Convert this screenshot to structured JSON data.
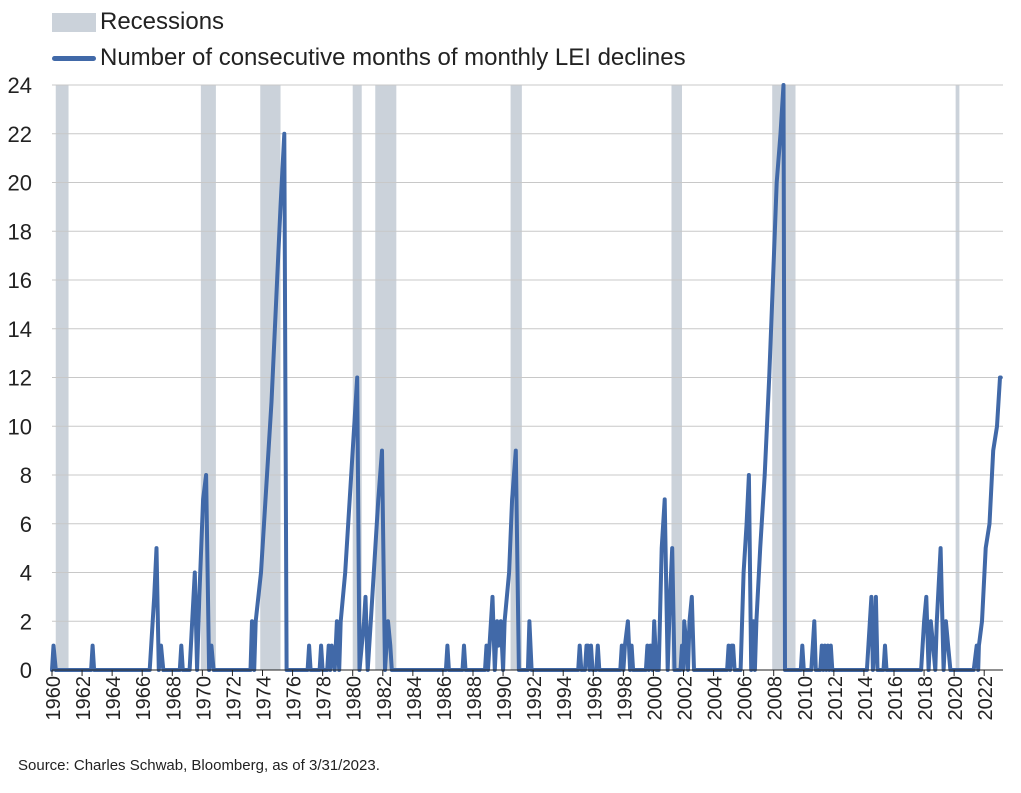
{
  "chart_data": {
    "type": "line",
    "title": "",
    "xlabel": "",
    "ylabel": "",
    "ylim": [
      0,
      24
    ],
    "xlim": [
      1960,
      2023.25
    ],
    "yticks": [
      0,
      2,
      4,
      6,
      8,
      10,
      12,
      14,
      16,
      18,
      20,
      22,
      24
    ],
    "xticks": [
      "1960",
      "1962",
      "1964",
      "1966",
      "1968",
      "1970",
      "1972",
      "1974",
      "1976",
      "1978",
      "1980",
      "1982",
      "1984",
      "1986",
      "1988",
      "1990",
      "1992",
      "1994",
      "1996",
      "1998",
      "2000",
      "2002",
      "2004",
      "2006",
      "2008",
      "2010",
      "2012",
      "2014",
      "2016",
      "2018",
      "2020",
      "2022"
    ],
    "grid": true,
    "legend": {
      "position": "top-left",
      "recessions_label": "Recessions",
      "series_label": "Number of consecutive months of monthly LEI declines"
    },
    "colors": {
      "series": "#4169a8",
      "recession": "#cbd2da",
      "grid": "#c8c8c8"
    },
    "recessions": [
      [
        1960.25,
        1961.1
      ],
      [
        1969.9,
        1970.9
      ],
      [
        1973.85,
        1975.2
      ],
      [
        1980.0,
        1980.6
      ],
      [
        1981.5,
        1982.9
      ],
      [
        1990.5,
        1991.25
      ],
      [
        2001.2,
        2001.9
      ],
      [
        2007.9,
        2009.45
      ],
      [
        2020.1,
        2020.35
      ]
    ],
    "series": [
      {
        "name": "Number of consecutive months of monthly LEI declines",
        "points": [
          [
            1960.0,
            0
          ],
          [
            1960.1,
            1
          ],
          [
            1960.25,
            0
          ],
          [
            1962.6,
            0
          ],
          [
            1962.7,
            1
          ],
          [
            1962.8,
            0
          ],
          [
            1966.5,
            0
          ],
          [
            1966.8,
            3
          ],
          [
            1966.95,
            5
          ],
          [
            1967.1,
            0
          ],
          [
            1967.25,
            1
          ],
          [
            1967.4,
            0
          ],
          [
            1968.5,
            0
          ],
          [
            1968.6,
            1
          ],
          [
            1968.7,
            0
          ],
          [
            1969.15,
            0
          ],
          [
            1969.5,
            4
          ],
          [
            1969.65,
            0
          ],
          [
            1969.8,
            3
          ],
          [
            1970.05,
            7
          ],
          [
            1970.25,
            8
          ],
          [
            1970.45,
            0
          ],
          [
            1970.6,
            1
          ],
          [
            1970.75,
            0
          ],
          [
            1973.2,
            0
          ],
          [
            1973.3,
            2
          ],
          [
            1973.45,
            0
          ],
          [
            1973.55,
            2
          ],
          [
            1973.9,
            4
          ],
          [
            1974.2,
            7
          ],
          [
            1974.6,
            11
          ],
          [
            1974.9,
            15
          ],
          [
            1975.2,
            19
          ],
          [
            1975.45,
            22
          ],
          [
            1975.6,
            0
          ],
          [
            1977.0,
            0
          ],
          [
            1977.1,
            1
          ],
          [
            1977.2,
            0
          ],
          [
            1977.8,
            0
          ],
          [
            1977.9,
            1
          ],
          [
            1978.0,
            0
          ],
          [
            1978.3,
            0
          ],
          [
            1978.4,
            1
          ],
          [
            1978.5,
            0
          ],
          [
            1978.6,
            1
          ],
          [
            1978.8,
            0
          ],
          [
            1978.95,
            2
          ],
          [
            1979.1,
            0
          ],
          [
            1979.2,
            2
          ],
          [
            1979.5,
            4
          ],
          [
            1979.8,
            7
          ],
          [
            1980.1,
            10
          ],
          [
            1980.3,
            12
          ],
          [
            1980.45,
            0
          ],
          [
            1980.75,
            2
          ],
          [
            1980.85,
            3
          ],
          [
            1981.0,
            0
          ],
          [
            1981.2,
            2
          ],
          [
            1981.5,
            5
          ],
          [
            1981.7,
            7
          ],
          [
            1981.95,
            9
          ],
          [
            1982.15,
            0
          ],
          [
            1982.35,
            2
          ],
          [
            1982.5,
            1
          ],
          [
            1982.6,
            0
          ],
          [
            1986.2,
            0
          ],
          [
            1986.3,
            1
          ],
          [
            1986.4,
            0
          ],
          [
            1987.3,
            0
          ],
          [
            1987.4,
            1
          ],
          [
            1987.5,
            0
          ],
          [
            1988.8,
            0
          ],
          [
            1988.9,
            1
          ],
          [
            1989.0,
            0
          ],
          [
            1989.1,
            1
          ],
          [
            1989.3,
            3
          ],
          [
            1989.45,
            0
          ],
          [
            1989.6,
            2
          ],
          [
            1989.7,
            1
          ],
          [
            1989.85,
            2
          ],
          [
            1990.0,
            0
          ],
          [
            1990.1,
            2
          ],
          [
            1990.4,
            4
          ],
          [
            1990.6,
            7
          ],
          [
            1990.85,
            9
          ],
          [
            1991.05,
            0
          ],
          [
            1991.65,
            0
          ],
          [
            1991.75,
            2
          ],
          [
            1991.9,
            0
          ],
          [
            1995.0,
            0
          ],
          [
            1995.1,
            1
          ],
          [
            1995.2,
            0
          ],
          [
            1995.45,
            0
          ],
          [
            1995.55,
            1
          ],
          [
            1995.65,
            1
          ],
          [
            1995.75,
            0
          ],
          [
            1995.85,
            1
          ],
          [
            1995.95,
            0
          ],
          [
            1996.2,
            0
          ],
          [
            1996.3,
            1
          ],
          [
            1996.4,
            0
          ],
          [
            1997.8,
            0
          ],
          [
            1997.9,
            1
          ],
          [
            1998.0,
            0
          ],
          [
            1998.1,
            1
          ],
          [
            1998.3,
            2
          ],
          [
            1998.45,
            0
          ],
          [
            1998.55,
            1
          ],
          [
            1998.65,
            0
          ],
          [
            1999.5,
            0
          ],
          [
            1999.6,
            1
          ],
          [
            1999.7,
            0
          ],
          [
            1999.8,
            1
          ],
          [
            1999.95,
            0
          ],
          [
            2000.05,
            2
          ],
          [
            2000.2,
            0
          ],
          [
            2000.35,
            0
          ],
          [
            2000.55,
            5
          ],
          [
            2000.75,
            7
          ],
          [
            2000.95,
            0
          ],
          [
            2001.1,
            3
          ],
          [
            2001.25,
            5
          ],
          [
            2001.4,
            0
          ],
          [
            2001.8,
            0
          ],
          [
            2001.9,
            1
          ],
          [
            2002.0,
            0
          ],
          [
            2002.05,
            2
          ],
          [
            2002.2,
            1
          ],
          [
            2002.3,
            0
          ],
          [
            2002.4,
            2
          ],
          [
            2002.55,
            3
          ],
          [
            2002.7,
            0
          ],
          [
            2004.9,
            0
          ],
          [
            2005.0,
            1
          ],
          [
            2005.1,
            0
          ],
          [
            2005.2,
            1
          ],
          [
            2005.3,
            1
          ],
          [
            2005.4,
            0
          ],
          [
            2005.8,
            0
          ],
          [
            2006.0,
            4
          ],
          [
            2006.2,
            6
          ],
          [
            2006.35,
            8
          ],
          [
            2006.5,
            0
          ],
          [
            2006.65,
            2
          ],
          [
            2006.75,
            0
          ],
          [
            2006.85,
            2
          ],
          [
            2007.1,
            5
          ],
          [
            2007.4,
            8
          ],
          [
            2007.7,
            12
          ],
          [
            2007.95,
            16
          ],
          [
            2008.2,
            20
          ],
          [
            2008.45,
            22
          ],
          [
            2008.65,
            24
          ],
          [
            2008.75,
            0
          ],
          [
            2009.8,
            0
          ],
          [
            2009.9,
            1
          ],
          [
            2010.0,
            0
          ],
          [
            2010.5,
            0
          ],
          [
            2010.7,
            2
          ],
          [
            2010.8,
            0
          ],
          [
            2011.1,
            0
          ],
          [
            2011.2,
            1
          ],
          [
            2011.3,
            0
          ],
          [
            2011.4,
            1
          ],
          [
            2011.5,
            0
          ],
          [
            2011.6,
            1
          ],
          [
            2011.7,
            0
          ],
          [
            2011.8,
            1
          ],
          [
            2011.9,
            0
          ],
          [
            2014.2,
            0
          ],
          [
            2014.4,
            2
          ],
          [
            2014.5,
            3
          ],
          [
            2014.6,
            0
          ],
          [
            2014.7,
            1
          ],
          [
            2014.8,
            3
          ],
          [
            2014.9,
            0
          ],
          [
            2015.3,
            0
          ],
          [
            2015.4,
            1
          ],
          [
            2015.5,
            0
          ],
          [
            2017.8,
            0
          ],
          [
            2018.0,
            2
          ],
          [
            2018.15,
            3
          ],
          [
            2018.3,
            0
          ],
          [
            2018.45,
            2
          ],
          [
            2018.6,
            1
          ],
          [
            2018.75,
            0
          ],
          [
            2018.85,
            2
          ],
          [
            2019.1,
            5
          ],
          [
            2019.3,
            0
          ],
          [
            2019.45,
            2
          ],
          [
            2019.6,
            1
          ],
          [
            2019.75,
            0
          ],
          [
            2021.3,
            0
          ],
          [
            2021.5,
            1
          ],
          [
            2021.6,
            0
          ],
          [
            2021.65,
            1
          ],
          [
            2021.85,
            2
          ],
          [
            2022.1,
            5
          ],
          [
            2022.35,
            6
          ],
          [
            2022.6,
            9
          ],
          [
            2022.85,
            10
          ],
          [
            2023.05,
            12
          ],
          [
            2023.1,
            12
          ]
        ]
      }
    ]
  },
  "source_note": "Source: Charles Schwab, Bloomberg, as of 3/31/2023."
}
